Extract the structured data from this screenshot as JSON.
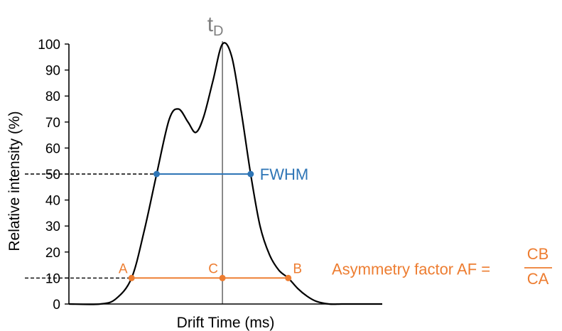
{
  "chart_data": {
    "type": "line",
    "xlabel": "Drift Time (ms)",
    "ylabel": "Relative intensity (%)",
    "ylim": [
      0,
      100
    ],
    "xlim": [
      0,
      10
    ],
    "yticks": [
      0,
      10,
      20,
      30,
      40,
      50,
      60,
      70,
      80,
      90,
      100
    ],
    "grid": false,
    "series": [
      {
        "x": [
          0,
          1,
          1.5,
          2,
          2.4,
          2.8,
          3.2,
          3.5,
          3.8,
          4.05,
          4.3,
          4.6,
          4.9,
          5.2,
          5.5,
          5.8,
          6.1,
          6.4,
          6.7,
          7,
          7.3,
          7.6,
          7.9,
          8.3,
          8.7,
          9.1,
          10
        ],
        "y": [
          0,
          0,
          2,
          10,
          28,
          50,
          71,
          75,
          70,
          66,
          72,
          86,
          100,
          95,
          74,
          50,
          30,
          19,
          13,
          10,
          6,
          3,
          1,
          0,
          0,
          0,
          0
        ],
        "color": "#000000"
      }
    ],
    "peak": {
      "label_main": "t",
      "label_sub": "D",
      "x": 4.9,
      "color": "#7f7f7f"
    },
    "fwhm": {
      "label": "FWHM",
      "y": 50,
      "x_left": 2.8,
      "x_right": 5.8,
      "color": "#2e75b6"
    },
    "asymmetry": {
      "y": 10,
      "points": [
        {
          "label": "A",
          "x": 2.0
        },
        {
          "label": "C",
          "x": 4.9
        },
        {
          "label": "B",
          "x": 7.0
        }
      ],
      "formula_text": "Asymmetry factor AF =",
      "numerator": "CB",
      "denominator": "CA",
      "color": "#ed7d31"
    }
  }
}
